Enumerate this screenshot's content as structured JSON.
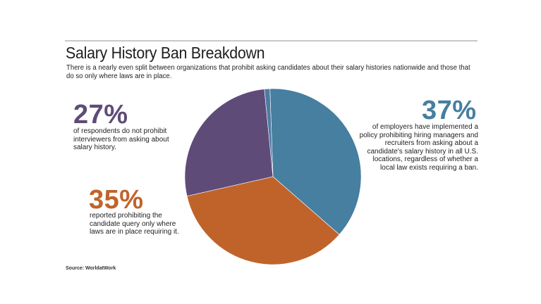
{
  "chart_data": {
    "type": "pie",
    "title": "Salary History Ban Breakdown",
    "subtitle": "There is a nearly even split between organizations that prohibit asking candidates about their salary histories nationwide and those that do so only where laws are in place.",
    "start_angle_deg": -2,
    "slices": [
      {
        "value": 37,
        "label": "37%",
        "description": "of employers have implemented a policy prohibiting hiring managers and recruiters from asking about a candidate's salary history in all U.S. locations, regardless of whether a local law exists requiring a ban.",
        "color": "#467f9f"
      },
      {
        "value": 35,
        "label": "35%",
        "description": "reported prohibiting the candidate query only where laws are in place requiring it.",
        "color": "#c0632b"
      },
      {
        "value": 27,
        "label": "27%",
        "description": "of respondents do not prohibit interviewers from asking about salary history.",
        "color": "#5f4b78"
      },
      {
        "value": 1,
        "label": "",
        "description": "",
        "color": "#4d7ba3"
      }
    ],
    "source": "Source: WorldatWork"
  }
}
